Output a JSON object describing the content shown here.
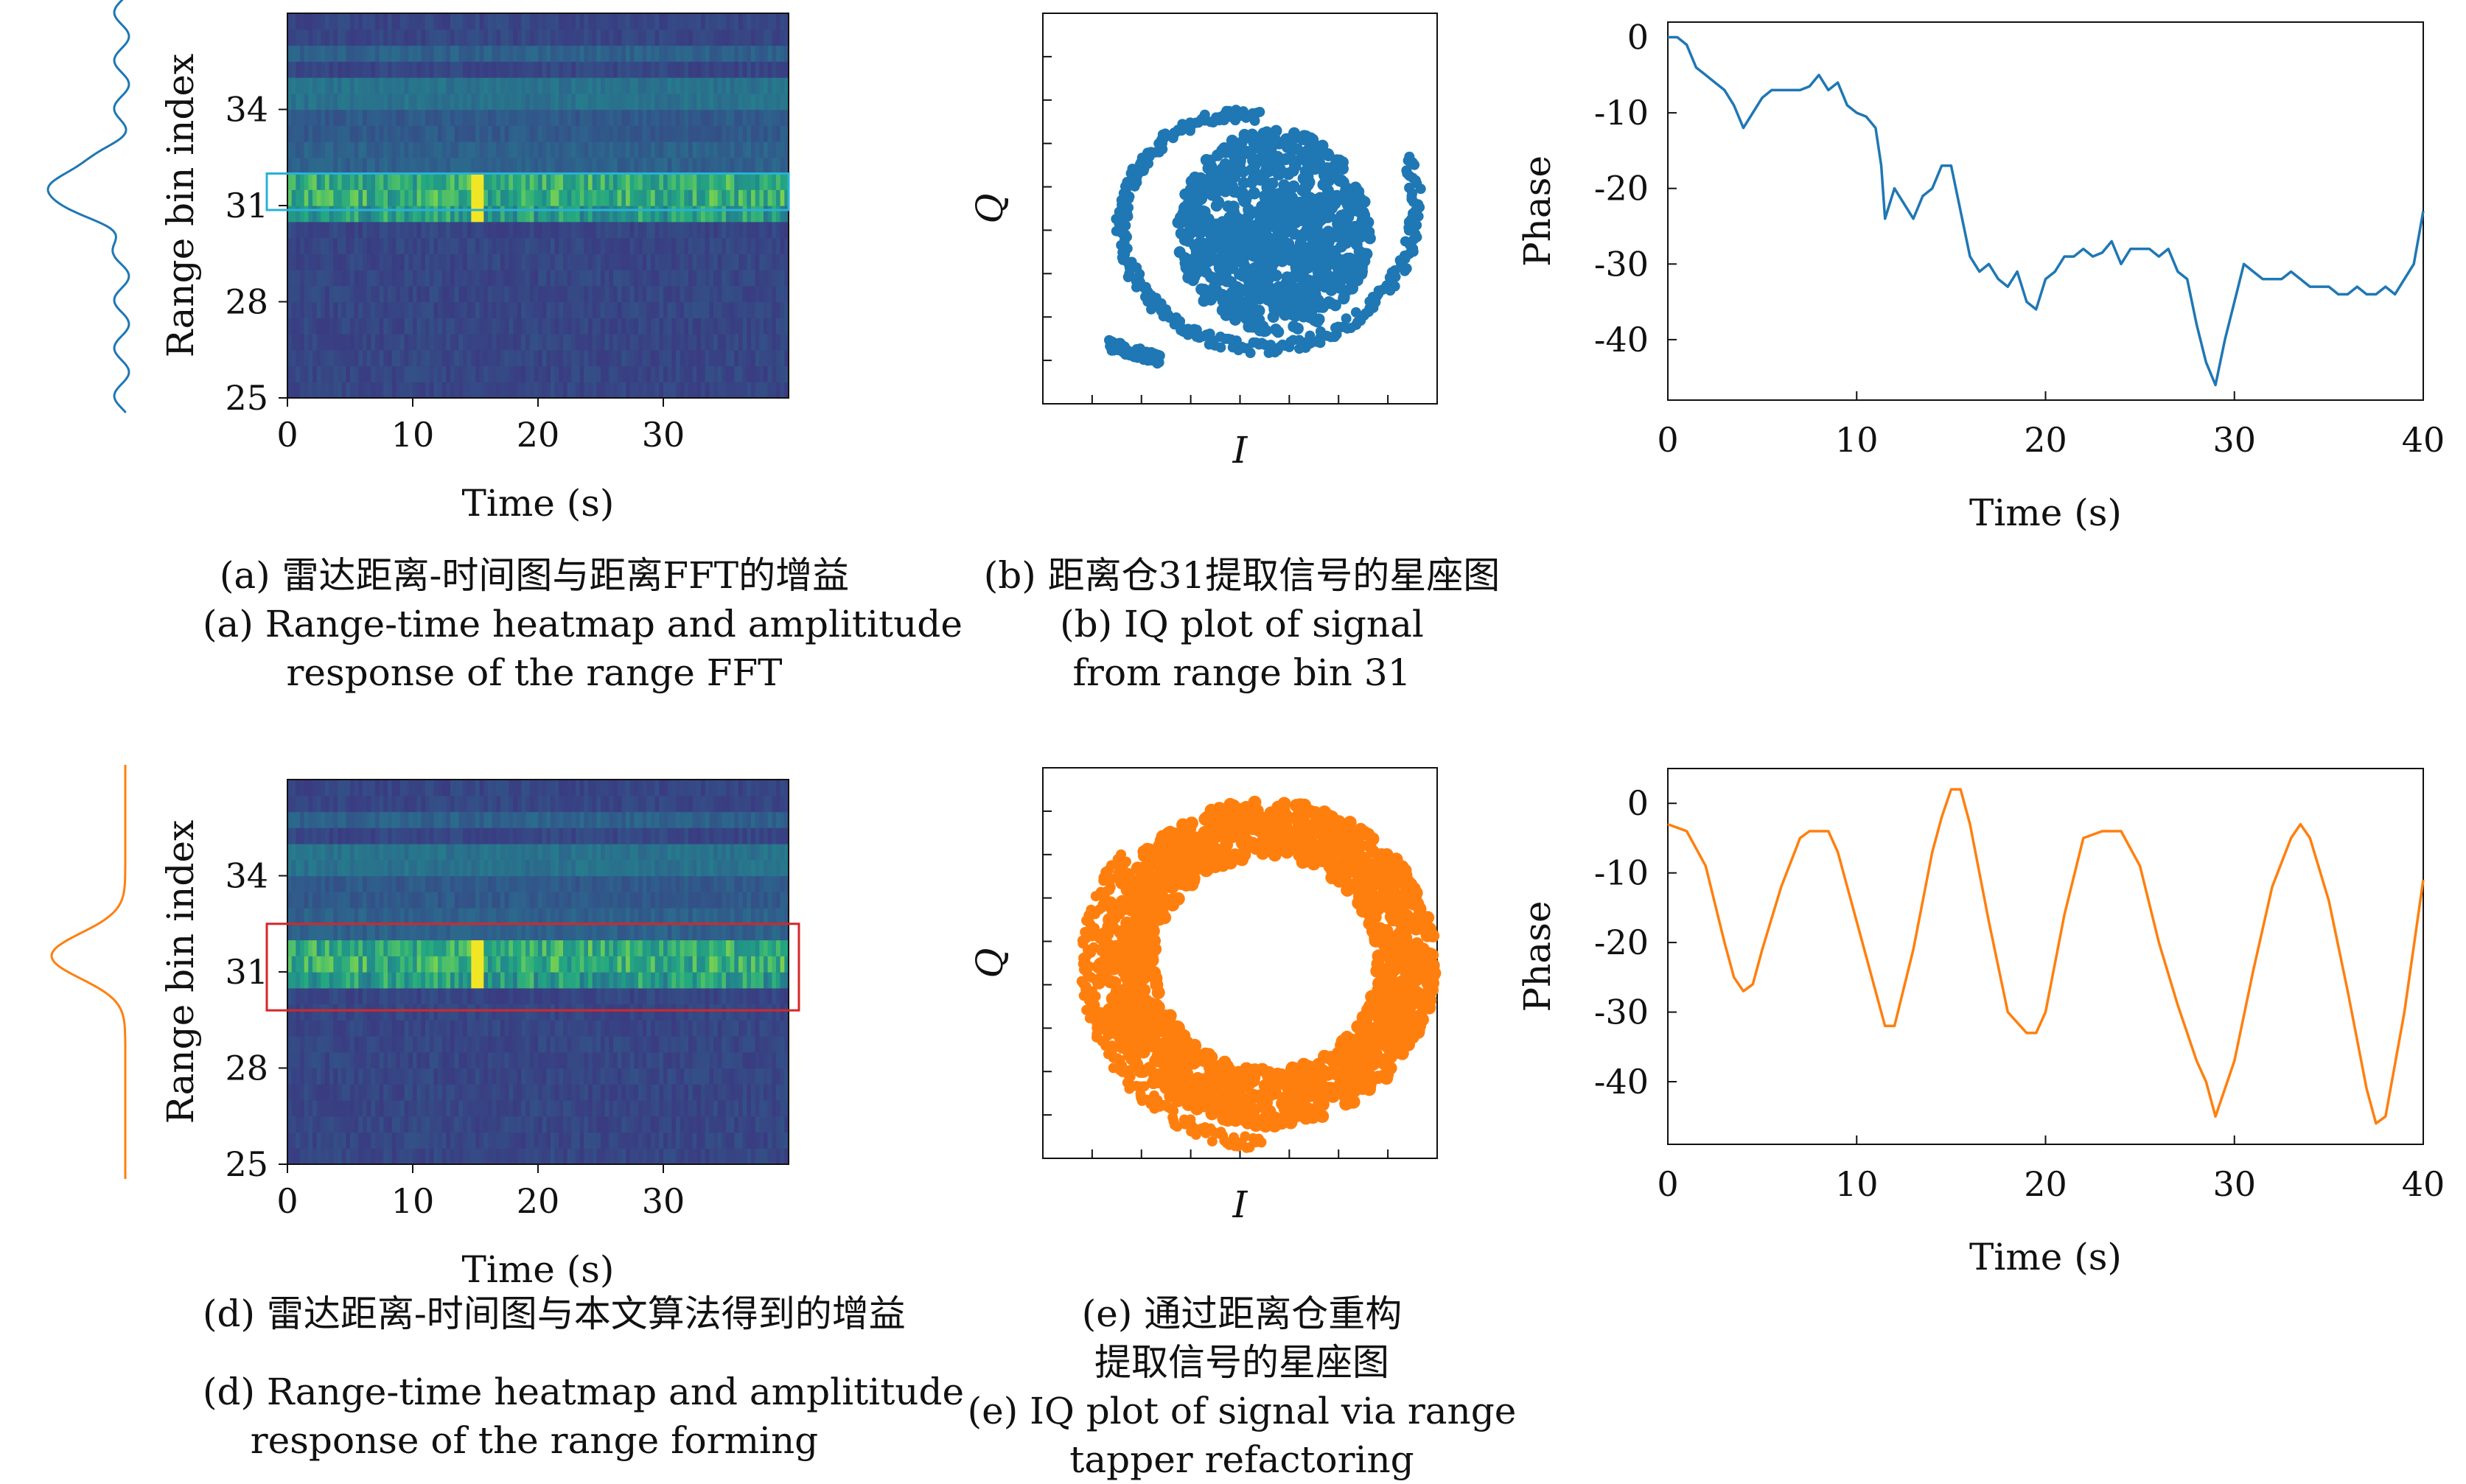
{
  "colors": {
    "blue": "#1f77b4",
    "orange": "#ff7f0e",
    "cyan_box": "#2ab0d8",
    "red_box": "#d62728"
  },
  "chart_data": [
    {
      "id": "a",
      "type": "heatmap",
      "xlabel": "Time (s)",
      "ylabel": "Range bin index",
      "xticks": [
        0,
        10,
        20,
        30
      ],
      "yticks": [
        25,
        28,
        31,
        34
      ],
      "xlim": [
        0,
        40
      ],
      "ylim": [
        25,
        37
      ],
      "highlight_bin": 31,
      "highlight_color": "cyan",
      "side_profile": "oscillating range FFT amplitude response, peak at bin 31",
      "caption_cn": "(a) 雷达距离-时间图与距离FFT的增益",
      "caption_en": [
        "(a) Range-time heatmap and amplititude",
        "response of the range FFT"
      ]
    },
    {
      "id": "b",
      "type": "scatter",
      "xlabel": "I",
      "ylabel": "Q",
      "caption_cn": "(b) 距离仓31提取信号的星座图",
      "caption_en": [
        "(b) IQ plot of signal",
        "from range bin 31"
      ]
    },
    {
      "id": "c",
      "type": "line",
      "xlabel": "Time (s)",
      "ylabel": "Phase",
      "xticks": [
        0,
        10,
        20,
        30,
        40
      ],
      "yticks": [
        0,
        -10,
        -20,
        -30,
        -40
      ],
      "xlim": [
        0,
        40
      ],
      "ylim": [
        -48,
        2
      ],
      "x": [
        0,
        0.5,
        1,
        1.5,
        2,
        2.5,
        3,
        3.5,
        4,
        4.5,
        5,
        5.5,
        6,
        6.5,
        7,
        7.5,
        8,
        8.5,
        9,
        9.5,
        10,
        10.5,
        11,
        11.3,
        11.5,
        12,
        12.5,
        13,
        13.5,
        14,
        14.5,
        15,
        15.5,
        16,
        16.5,
        17,
        17.5,
        18,
        18.5,
        19,
        19.5,
        20,
        20.5,
        21,
        21.5,
        22,
        22.5,
        23,
        23.5,
        24,
        24.5,
        25,
        25.5,
        26,
        26.5,
        27,
        27.5,
        28,
        28.5,
        29,
        29.5,
        30,
        30.5,
        31,
        31.5,
        32,
        32.5,
        33,
        33.5,
        34,
        34.5,
        35,
        35.5,
        36,
        36.5,
        37,
        37.5,
        38,
        38.5,
        39,
        39.5,
        40
      ],
      "y": [
        0,
        0,
        -1,
        -4,
        -5,
        -6,
        -7,
        -9,
        -12,
        -10,
        -8,
        -7,
        -7,
        -7,
        -7,
        -6.5,
        -5,
        -7,
        -6,
        -9,
        -10,
        -10.5,
        -12,
        -17,
        -24,
        -20,
        -22,
        -24,
        -21,
        -20,
        -17,
        -17,
        -23,
        -29,
        -31,
        -30,
        -32,
        -33,
        -31,
        -35,
        -36,
        -32,
        -31,
        -29,
        -29,
        -28,
        -29,
        -28.5,
        -27,
        -30,
        -28,
        -28,
        -28,
        -29,
        -28,
        -31,
        -32,
        -38,
        -43,
        -46,
        -40,
        -35,
        -30,
        -31,
        -32,
        -32,
        -32,
        -31,
        -32,
        -33,
        -33,
        -33,
        -34,
        -34,
        -33,
        -34,
        -34,
        -33,
        -34,
        -32,
        -30,
        -23
      ]
    },
    {
      "id": "d",
      "type": "heatmap",
      "xlabel": "Time (s)",
      "ylabel": "Range bin index",
      "xticks": [
        0,
        10,
        20,
        30
      ],
      "yticks": [
        25,
        28,
        31,
        34
      ],
      "xlim": [
        0,
        40
      ],
      "ylim": [
        25,
        37
      ],
      "highlight_bins": [
        29.8,
        32.5
      ],
      "highlight_color": "red",
      "side_profile": "single smooth Gaussian range response centered at bin 31",
      "caption_cn": "(d) 雷达距离-时间图与本文算法得到的增益",
      "caption_en": [
        "(d) Range-time heatmap and amplititude",
        "response of the range forming"
      ]
    },
    {
      "id": "e",
      "type": "scatter",
      "xlabel": "I",
      "ylabel": "Q",
      "caption_cn": [
        "(e) 通过距离仓重构",
        "提取信号的星座图"
      ],
      "caption_en": [
        "(e) IQ plot of signal via range",
        "tapper refactoring"
      ]
    },
    {
      "id": "f",
      "type": "line",
      "xlabel": "Time (s)",
      "ylabel": "Phase",
      "xticks": [
        0,
        10,
        20,
        30,
        40
      ],
      "yticks": [
        0,
        -10,
        -20,
        -30,
        -40
      ],
      "xlim": [
        0,
        40
      ],
      "ylim": [
        -49,
        5
      ],
      "x": [
        0,
        1,
        2,
        3,
        3.5,
        4,
        4.5,
        5,
        6,
        7,
        7.5,
        8,
        8.5,
        9,
        10,
        11,
        11.5,
        12,
        13,
        14,
        14.5,
        15,
        15.5,
        16,
        17,
        18,
        19,
        19.5,
        20,
        21,
        22,
        23,
        23.5,
        24,
        25,
        26,
        27,
        28,
        28.5,
        29,
        30,
        31,
        32,
        33,
        33.5,
        34,
        35,
        36,
        37,
        37.5,
        38,
        39,
        40
      ],
      "y": [
        -3,
        -4,
        -9,
        -20,
        -25,
        -27,
        -26,
        -21,
        -12,
        -5,
        -4,
        -4,
        -4,
        -7,
        -17,
        -27,
        -32,
        -32,
        -21,
        -7,
        -2,
        2,
        2,
        -3,
        -17,
        -30,
        -33,
        -33,
        -30,
        -16,
        -5,
        -4,
        -4,
        -4,
        -9,
        -20,
        -29,
        -37,
        -40,
        -45,
        -37,
        -24,
        -12,
        -5,
        -3,
        -5,
        -14,
        -27,
        -41,
        -46,
        -45,
        -30,
        -11
      ]
    }
  ]
}
